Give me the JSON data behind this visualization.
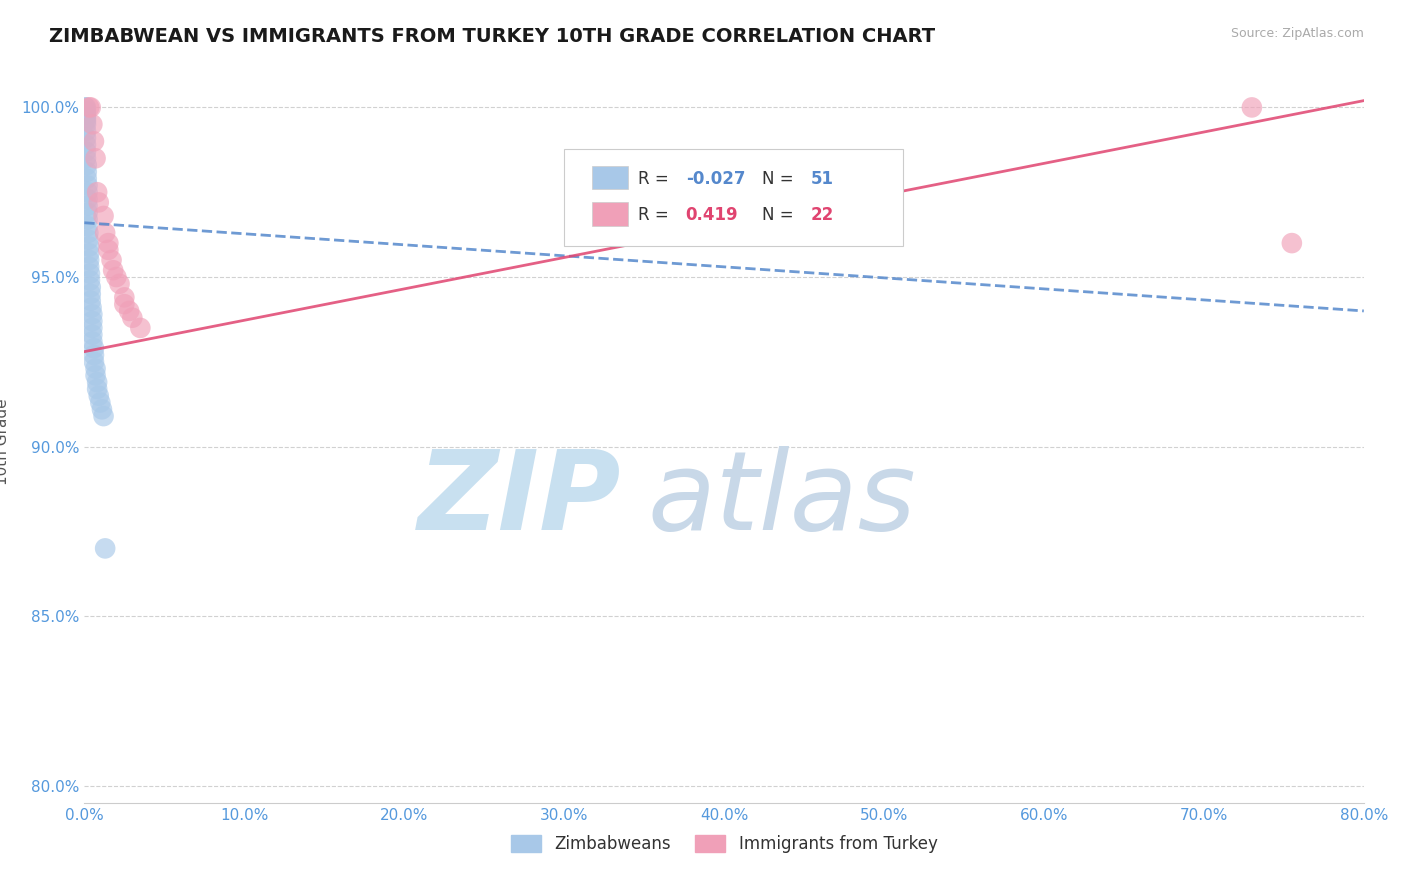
{
  "title": "ZIMBABWEAN VS IMMIGRANTS FROM TURKEY 10TH GRADE CORRELATION CHART",
  "source_text": "Source: ZipAtlas.com",
  "xlabel": "",
  "ylabel": "10th Grade",
  "legend_labels": [
    "Zimbabweans",
    "Immigrants from Turkey"
  ],
  "r_zimbabwe": -0.027,
  "n_zimbabwe": 51,
  "r_turkey": 0.419,
  "n_turkey": 22,
  "color_zimbabwe": "#a8c8e8",
  "color_turkey": "#f0a0b8",
  "line_color_zimbabwe": "#5588cc",
  "line_color_turkey": "#e04470",
  "watermark_zip": "ZIP",
  "watermark_atlas": "atlas",
  "watermark_color_zip": "#c8e0f0",
  "watermark_color_atlas": "#c8d8e8",
  "xmin": 0.0,
  "xmax": 0.8,
  "ymin": 0.795,
  "ymax": 1.008,
  "zimbabwe_x": [
    0.0005,
    0.001,
    0.001,
    0.001,
    0.001,
    0.001,
    0.001,
    0.001,
    0.001,
    0.001,
    0.001,
    0.001,
    0.0015,
    0.0015,
    0.0015,
    0.002,
    0.002,
    0.002,
    0.002,
    0.002,
    0.002,
    0.002,
    0.0025,
    0.0025,
    0.003,
    0.003,
    0.003,
    0.003,
    0.0035,
    0.0035,
    0.004,
    0.004,
    0.004,
    0.0045,
    0.005,
    0.005,
    0.005,
    0.005,
    0.005,
    0.006,
    0.006,
    0.006,
    0.007,
    0.007,
    0.008,
    0.008,
    0.009,
    0.01,
    0.011,
    0.012,
    0.013
  ],
  "zimbabwe_y": [
    1.0,
    1.0,
    0.999,
    0.998,
    0.997,
    0.996,
    0.995,
    0.993,
    0.991,
    0.989,
    0.987,
    0.985,
    0.983,
    0.981,
    0.979,
    0.977,
    0.975,
    0.973,
    0.971,
    0.969,
    0.967,
    0.965,
    0.963,
    0.961,
    0.959,
    0.957,
    0.955,
    0.953,
    0.951,
    0.949,
    0.947,
    0.945,
    0.943,
    0.941,
    0.939,
    0.937,
    0.935,
    0.933,
    0.931,
    0.929,
    0.927,
    0.925,
    0.923,
    0.921,
    0.919,
    0.917,
    0.915,
    0.913,
    0.911,
    0.909,
    0.87
  ],
  "turkey_x": [
    0.003,
    0.004,
    0.005,
    0.006,
    0.007,
    0.008,
    0.009,
    0.012,
    0.013,
    0.015,
    0.015,
    0.017,
    0.018,
    0.02,
    0.022,
    0.025,
    0.025,
    0.028,
    0.03,
    0.035,
    0.73,
    0.755
  ],
  "turkey_y": [
    1.0,
    1.0,
    0.995,
    0.99,
    0.985,
    0.975,
    0.972,
    0.968,
    0.963,
    0.96,
    0.958,
    0.955,
    0.952,
    0.95,
    0.948,
    0.944,
    0.942,
    0.94,
    0.938,
    0.935,
    1.0,
    0.96
  ],
  "trend_z_x0": 0.0,
  "trend_z_x1": 0.8,
  "trend_z_y0": 0.966,
  "trend_z_y1": 0.94,
  "trend_t_x0": 0.0,
  "trend_t_x1": 0.8,
  "trend_t_y0": 0.928,
  "trend_t_y1": 1.002,
  "grid_color": "#cccccc",
  "bg_color": "#ffffff",
  "tick_label_color": "#5599dd",
  "ytick_positions": [
    0.8,
    0.85,
    0.9,
    0.95,
    1.0
  ],
  "ytick_labels": [
    "80.0%",
    "85.0%",
    "90.0%",
    "95.0%",
    "100.0%"
  ],
  "xtick_positions": [
    0.0,
    0.1,
    0.2,
    0.3,
    0.4,
    0.5,
    0.6,
    0.7,
    0.8
  ],
  "xtick_labels": [
    "0.0%",
    "10.0%",
    "20.0%",
    "30.0%",
    "40.0%",
    "50.0%",
    "60.0%",
    "70.0%",
    "80.0%"
  ]
}
